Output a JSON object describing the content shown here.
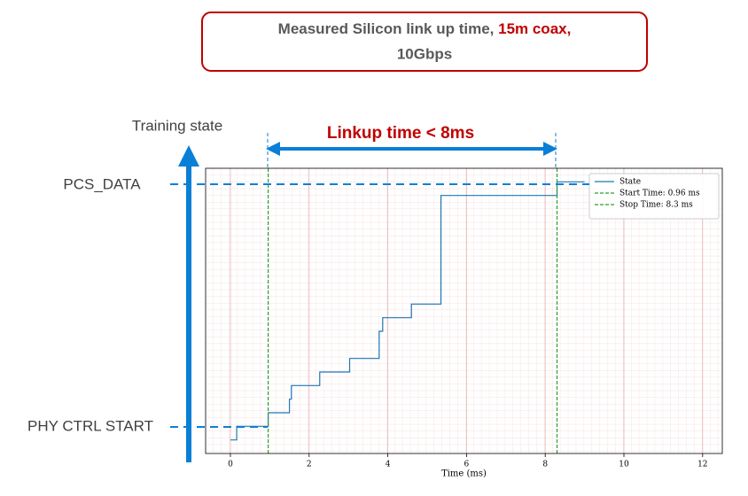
{
  "slide": {
    "title_parts": [
      "Measured Silicon link up time, ",
      "15m coax,",
      "10Gbps"
    ],
    "y_caption": "Training state",
    "span_caption": "Linkup time < 8ms",
    "top_state": "PCS_DATA",
    "bottom_state": "PHY CTRL START"
  },
  "chart_data": {
    "type": "line",
    "xlabel": "Time (ms)",
    "xlim": [
      -0.63,
      12.5
    ],
    "xticks": [
      0,
      2,
      4,
      6,
      8,
      10,
      12
    ],
    "ylim": [
      -1,
      20
    ],
    "grid": true,
    "legend": "upper right",
    "series": [
      {
        "name": "State",
        "color": "#1f77b4",
        "x": [
          0,
          0.16,
          0.16,
          0.96,
          0.96,
          1.5,
          1.5,
          1.55,
          1.55,
          2.27,
          2.27,
          3.03,
          3.03,
          3.78,
          3.78,
          3.87,
          3.87,
          4.6,
          4.6,
          5.35,
          5.35,
          8.3,
          8.3,
          9.0
        ],
        "values": [
          0,
          0,
          1,
          1,
          2,
          2,
          3,
          3,
          4,
          4,
          5,
          5,
          6,
          6,
          8,
          8,
          9,
          9,
          10,
          10,
          18,
          18,
          19,
          19
        ]
      }
    ],
    "vlines": [
      {
        "name": "Start Time: 0.96 ms",
        "x": 0.96,
        "color": "#2ca02c"
      },
      {
        "name": "Stop Time: 8.3 ms",
        "x": 8.3,
        "color": "#2ca02c"
      }
    ]
  }
}
